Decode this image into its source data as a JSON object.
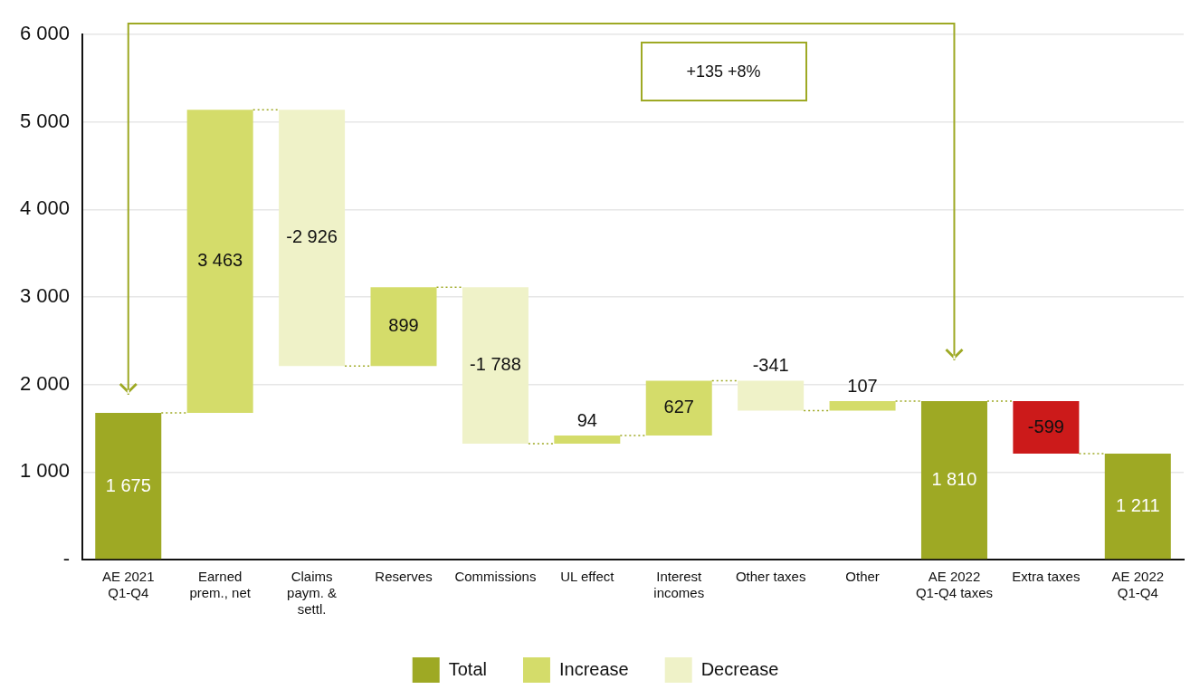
{
  "chart_data": {
    "type": "bar",
    "categories": [
      "AE 2021 Q1-Q4",
      "Earned prem., net",
      "Claims paym. & settl.",
      "Reserves",
      "Commissions",
      "UL effect",
      "Interest incomes",
      "Other taxes",
      "Other",
      "AE 2022 Q1-Q4 taxes",
      "Extra taxes",
      "AE 2022 Q1-Q4"
    ],
    "series": [
      {
        "name": "Total",
        "color": "#9ea924",
        "values": [
          1675,
          null,
          null,
          null,
          null,
          null,
          null,
          null,
          null,
          1810,
          null,
          1211
        ],
        "base": [
          0,
          null,
          null,
          null,
          null,
          null,
          null,
          null,
          null,
          0,
          null,
          0
        ]
      },
      {
        "name": "Increase",
        "color": "#d4dc6a",
        "values": [
          null,
          3463,
          null,
          899,
          null,
          94,
          627,
          null,
          107,
          null,
          null,
          null
        ],
        "base": [
          null,
          1675,
          null,
          2212,
          null,
          1323,
          1417,
          null,
          1703,
          null,
          null,
          null
        ]
      },
      {
        "name": "Decrease",
        "color": "#eff2c8",
        "values": [
          null,
          null,
          -2926,
          null,
          -1788,
          null,
          null,
          -341,
          null,
          null,
          null,
          null
        ],
        "base": [
          null,
          null,
          5138,
          null,
          3111,
          null,
          null,
          2044,
          null,
          null,
          null,
          null
        ]
      },
      {
        "color": "#cc1a1a",
        "values": [
          null,
          null,
          null,
          null,
          null,
          null,
          null,
          null,
          null,
          null,
          -599,
          null
        ],
        "base": [
          null,
          null,
          null,
          null,
          null,
          null,
          null,
          null,
          null,
          null,
          1810,
          null
        ]
      }
    ],
    "value_labels": [
      "1 675",
      "3 463",
      "-2 926",
      "899",
      "-1 788",
      "94",
      "627",
      "-341",
      "107",
      "1 810",
      "-599",
      "1 211"
    ],
    "ylim": [
      0,
      6000
    ],
    "yticks": [
      {
        "value": 0,
        "label": "-"
      },
      {
        "value": 1000,
        "label": "1 000"
      },
      {
        "value": 2000,
        "label": "2 000"
      },
      {
        "value": 3000,
        "label": "3 000"
      },
      {
        "value": 4000,
        "label": "4 000"
      },
      {
        "value": 5000,
        "label": "5 000"
      },
      {
        "value": 6000,
        "label": "6 000"
      }
    ],
    "grid": "y",
    "legend": "bottom",
    "annotations": [
      "+135 +8%"
    ]
  }
}
